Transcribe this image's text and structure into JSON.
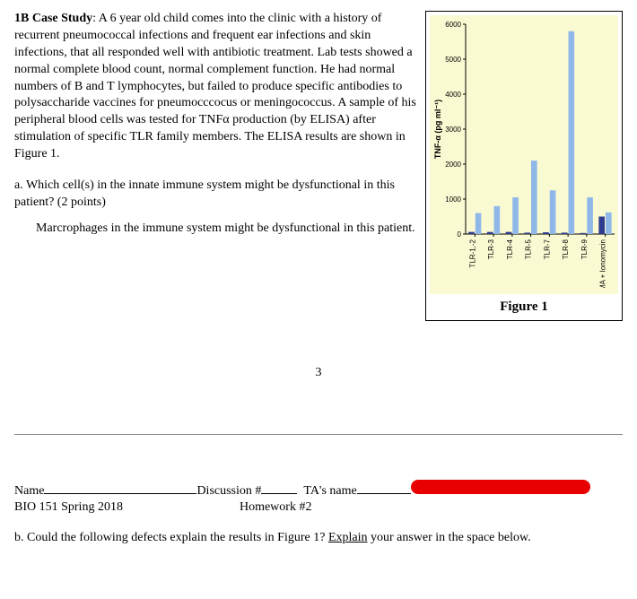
{
  "caseStudy": {
    "heading": "1B Case Study",
    "body": ": A 6 year old child comes into the clinic with a history of recurrent pneumococcal infections and frequent ear infections and skin infections, that all responded well with antibiotic treatment.  Lab tests showed a normal complete blood count, normal complement function.   He had normal numbers of B and T lymphocytes, but failed to produce specific antibodies to polysaccharide vaccines for pneumocccocus or meningococcus.  A sample of his peripheral blood cells was tested for TNFα production (by ELISA) after stimulation of specific TLR family members.  The ELISA results are shown in Figure 1."
  },
  "questionA": {
    "label": "a.  Which cell(s) in the innate immune system might be dysfunctional in this patient? (2 points)",
    "answer": "Marcrophages in the immune system might be dysfunctional in this patient."
  },
  "pageNumber": "3",
  "footer": {
    "nameLabel": "Name",
    "discussionLabel": "Discussion #",
    "taLabel": "TA's name",
    "course": "BIO 151 Spring 2018",
    "hw": "Homework #2"
  },
  "questionB": {
    "prefix": "b.  Could the following defects explain the results in Figure 1?  ",
    "underlined": "Explain",
    "suffix": " your answer in the space below."
  },
  "figure": {
    "caption": "Figure 1",
    "ylabel": "TNF-α (pg ml⁻¹)",
    "ylim": [
      0,
      6000
    ],
    "ytick_step": 1000,
    "categories": [
      "TLR-1,-2",
      "TLR-3",
      "TLR-4",
      "TLR-5",
      "TLR-7",
      "TLR-8",
      "TLR-9",
      "PMA + Ionomycin"
    ],
    "series": {
      "patient_color": "#2e3b8f",
      "control_color": "#8fb8e8",
      "patient_values": [
        60,
        60,
        60,
        40,
        50,
        40,
        30,
        500
      ],
      "control_values": [
        600,
        800,
        1050,
        2100,
        1250,
        5800,
        1050,
        620
      ]
    },
    "background_color": "#fafad2",
    "axis_color": "#000000",
    "font_size_axis": 8,
    "font_size_ticks": 8
  }
}
